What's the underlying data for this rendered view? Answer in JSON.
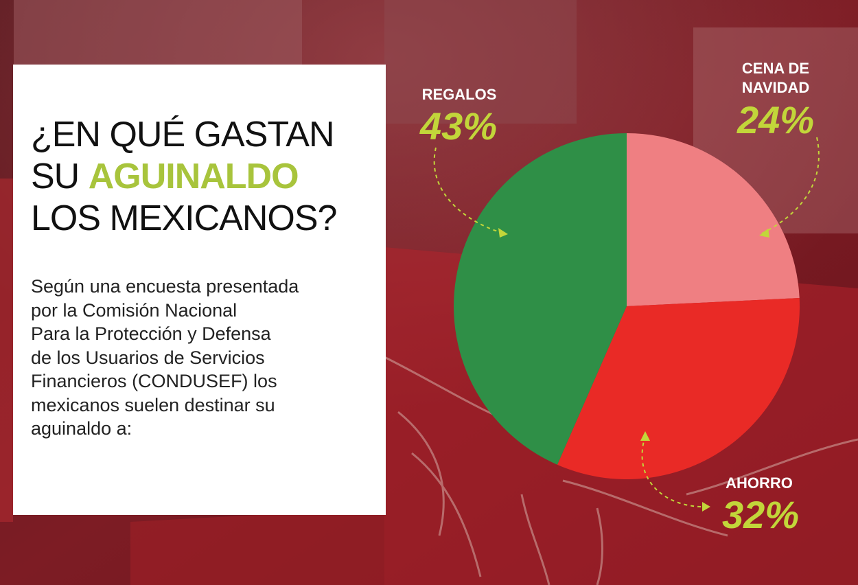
{
  "headline": {
    "line1": "¿EN QUÉ GASTAN",
    "line2_prefix": "SU ",
    "line2_highlight": "AGUINALDO",
    "line3": "LOS MEXICANOS?"
  },
  "body_lines": [
    "Según una encuesta presentada",
    "por la Comisión Nacional",
    "Para la Protección y Defensa",
    "de los Usuarios de Servicios",
    "Financieros (CONDUSEF) los",
    "mexicanos suelen destinar su",
    "aguinaldo a:"
  ],
  "colors": {
    "background": "#7a1a22",
    "accent": "#a8c43c",
    "pct_text": "#c2d63a",
    "card": "#ffffff"
  },
  "chart_data": {
    "type": "pie",
    "start_angle_deg": 0,
    "direction": "clockwise",
    "slices": [
      {
        "label_lines": [
          "CENA DE",
          "NAVIDAD"
        ],
        "value": 24,
        "value_label": "24%",
        "color": "#ef7f82"
      },
      {
        "label_lines": [
          "AHORRO"
        ],
        "value": 32,
        "value_label": "32%",
        "color": "#e92a26"
      },
      {
        "label_lines": [
          "REGALOS"
        ],
        "value": 43,
        "value_label": "43%",
        "color": "#2f8f47"
      }
    ]
  }
}
